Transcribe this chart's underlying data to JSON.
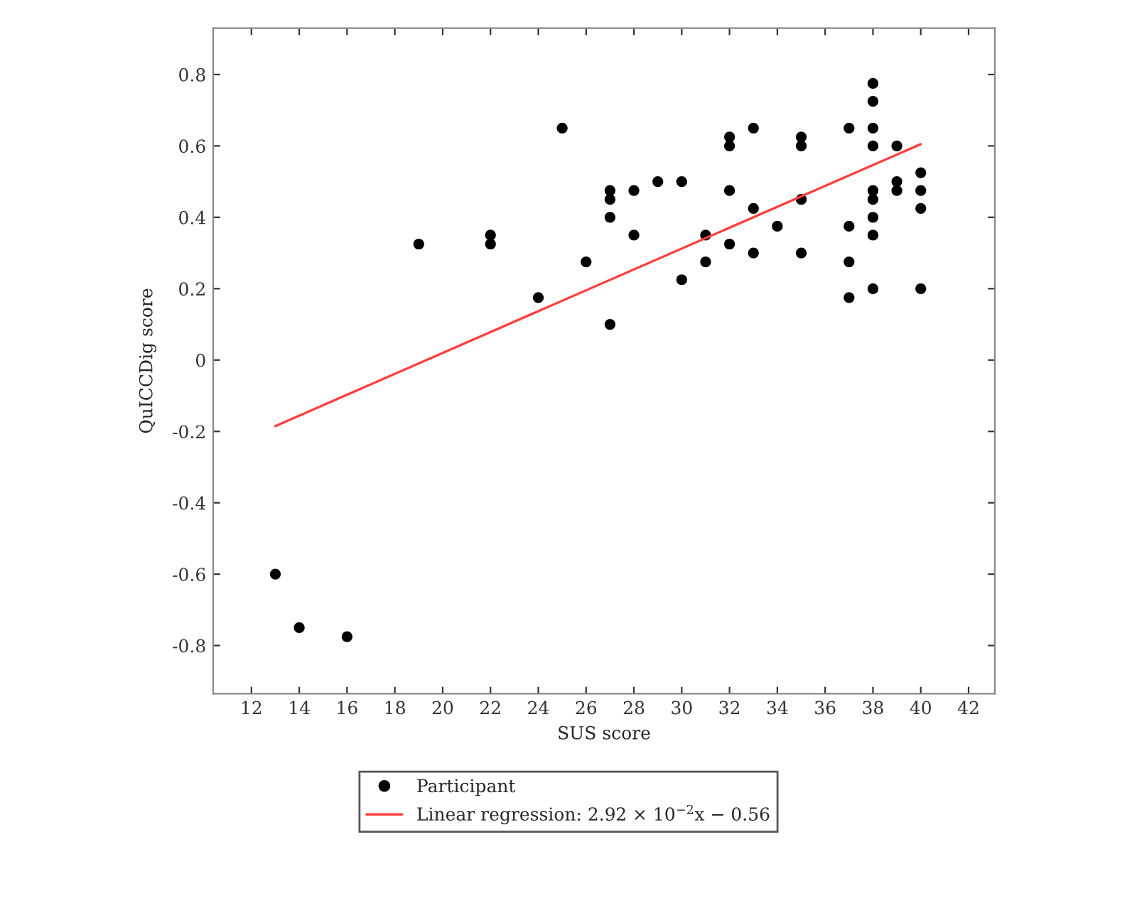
{
  "chart_data": {
    "type": "scatter",
    "xlabel": "SUS score",
    "ylabel": "QuICCDig score",
    "series": [
      {
        "name": "Participant",
        "color": "#000000",
        "marker": "circle",
        "x": [
          13,
          14,
          16,
          19,
          22,
          22,
          24,
          25,
          26,
          27,
          27,
          27,
          27,
          28,
          28,
          29,
          30,
          30,
          31,
          31,
          32,
          32,
          32,
          32,
          33,
          33,
          33,
          34,
          35,
          35,
          35,
          35,
          37,
          37,
          37,
          37,
          38,
          38,
          38,
          38,
          38,
          38,
          38,
          38,
          38,
          39,
          39,
          39,
          40,
          40,
          40,
          40
        ],
        "values": [
          -0.6,
          -0.75,
          -0.775,
          0.325,
          0.35,
          0.325,
          0.175,
          0.65,
          0.275,
          0.475,
          0.45,
          0.4,
          0.1,
          0.475,
          0.35,
          0.5,
          0.5,
          0.225,
          0.35,
          0.275,
          0.625,
          0.6,
          0.475,
          0.325,
          0.65,
          0.425,
          0.3,
          0.375,
          0.625,
          0.6,
          0.45,
          0.3,
          0.65,
          0.375,
          0.275,
          0.175,
          0.775,
          0.725,
          0.65,
          0.6,
          0.475,
          0.45,
          0.4,
          0.35,
          0.2,
          0.6,
          0.5,
          0.475,
          0.525,
          0.475,
          0.425,
          0.2
        ]
      },
      {
        "name": "Linear regression: 2.92 × 10$^{−2}$x − 0.56",
        "type": "line",
        "color": "#ff4040",
        "x": [
          13,
          40
        ],
        "values": [
          -0.185,
          0.605
        ]
      }
    ],
    "xlim": [
      10.4,
      43.1
    ],
    "xticks": [
      12,
      14,
      16,
      18,
      20,
      22,
      24,
      26,
      28,
      30,
      32,
      34,
      36,
      38,
      40,
      42
    ],
    "ylim": [
      -0.935,
      0.93
    ],
    "yticks": [
      -0.8,
      -0.6,
      -0.4,
      -0.2,
      0,
      0.2,
      0.4,
      0.6,
      0.8
    ],
    "grid": false,
    "legend": "bottom"
  }
}
